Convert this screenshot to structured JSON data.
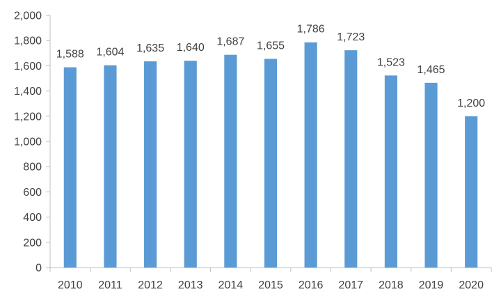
{
  "chart_data": {
    "type": "bar",
    "categories": [
      "2010",
      "2011",
      "2012",
      "2013",
      "2014",
      "2015",
      "2016",
      "2017",
      "2018",
      "2019",
      "2020"
    ],
    "values": [
      1588,
      1604,
      1635,
      1640,
      1687,
      1655,
      1786,
      1723,
      1523,
      1465,
      1200
    ],
    "data_labels": [
      "1,588",
      "1,604",
      "1,635",
      "1,640",
      "1,687",
      "1,655",
      "1,786",
      "1,723",
      "1,523",
      "1,465",
      "1,200"
    ],
    "yticks": [
      0,
      200,
      400,
      600,
      800,
      1000,
      1200,
      1400,
      1600,
      1800,
      2000
    ],
    "ytick_labels": [
      "0",
      "200",
      "400",
      "600",
      "800",
      "1,000",
      "1,200",
      "1,400",
      "1,600",
      "1,800",
      "2,000"
    ],
    "ylim": [
      0,
      2000
    ],
    "grid": false,
    "legend": "none",
    "title": "",
    "xlabel": "",
    "ylabel": "",
    "bar_color": "#5b9bd5",
    "axis_color": "#bfbfbf",
    "text_color": "#404040"
  }
}
